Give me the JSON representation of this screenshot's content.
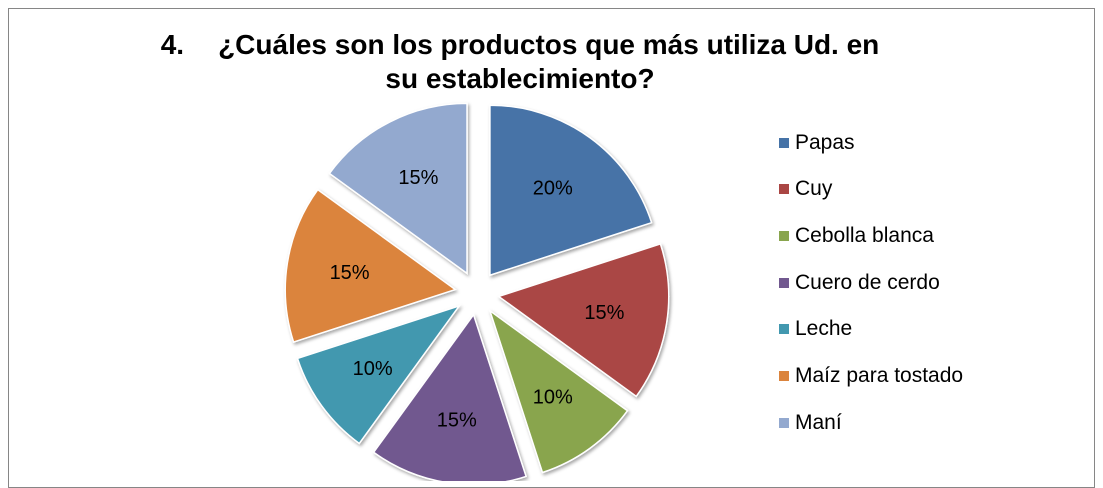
{
  "chart_data": {
    "type": "pie",
    "title_number": "4.",
    "title_line1": "¿Cuáles son los productos que más  utiliza Ud. en",
    "title_line2": "su establecimiento?",
    "legend_position": "right",
    "slices": [
      {
        "label": "Papas",
        "value": 20,
        "value_label": "20%",
        "color": "#4673a7"
      },
      {
        "label": "Cuy",
        "value": 15,
        "value_label": "15%",
        "color": "#aa4644"
      },
      {
        "label": "Cebolla blanca",
        "value": 10,
        "value_label": "10%",
        "color": "#89a54e"
      },
      {
        "label": "Cuero de cerdo",
        "value": 15,
        "value_label": "15%",
        "color": "#71588f"
      },
      {
        "label": "Leche",
        "value": 10,
        "value_label": "10%",
        "color": "#4298af"
      },
      {
        "label": "Maíz para tostado",
        "value": 15,
        "value_label": "15%",
        "color": "#db843d"
      },
      {
        "label": "Maní",
        "value": 15,
        "value_label": "15%",
        "color": "#93a9cf"
      }
    ]
  }
}
